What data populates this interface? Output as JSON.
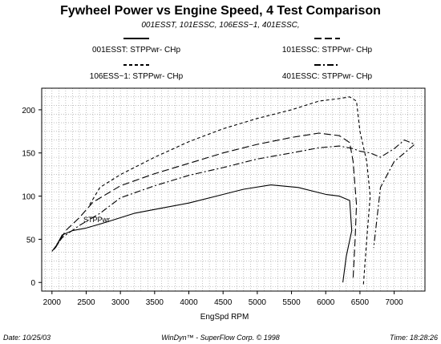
{
  "chart_data": {
    "type": "line",
    "title": "Fywheel Power vs Engine Speed, 4 Test Comparison",
    "subtitle": "001ESST, 101ESSC, 106ESS~1, 401ESSC,",
    "xlabel": "EngSpd  RPM",
    "ylabel": "",
    "xlim": [
      1850,
      7450
    ],
    "ylim": [
      -10,
      225
    ],
    "xticks": [
      2000,
      2500,
      3000,
      3500,
      4000,
      4500,
      5000,
      5500,
      6000,
      6500,
      7000
    ],
    "yticks": [
      0,
      50,
      100,
      150,
      200
    ],
    "grid": true,
    "legend_position": "top",
    "annotation": "STPPwr",
    "series": [
      {
        "name": "001ESST: STPPwr- CHp",
        "dash": "solid",
        "x": [
          2030,
          2150,
          2300,
          2500,
          2800,
          3200,
          3600,
          4000,
          4400,
          4800,
          5200,
          5600,
          6000,
          6200,
          6350,
          6380,
          6300,
          6250
        ],
        "y": [
          38,
          55,
          60,
          63,
          70,
          80,
          86,
          92,
          100,
          108,
          113,
          110,
          102,
          100,
          95,
          60,
          30,
          0
        ]
      },
      {
        "name": "101ESSC: STPPwr- CHp",
        "dash": "longdash",
        "x": [
          2050,
          2200,
          2400,
          2600,
          3000,
          3500,
          4000,
          4500,
          5000,
          5500,
          5900,
          6200,
          6350,
          6400,
          6450,
          6430,
          6400
        ],
        "y": [
          40,
          60,
          75,
          93,
          112,
          126,
          138,
          150,
          160,
          168,
          173,
          170,
          162,
          140,
          90,
          50,
          5
        ]
      },
      {
        "name": "106ESS~1: STPPwr- CHp",
        "dash": "shortdash",
        "x": [
          2550,
          2700,
          3000,
          3500,
          4000,
          4500,
          5000,
          5500,
          5900,
          6200,
          6350,
          6450,
          6500,
          6600,
          6650,
          6600,
          6550
        ],
        "y": [
          90,
          110,
          125,
          145,
          163,
          178,
          190,
          200,
          210,
          213,
          215,
          210,
          175,
          140,
          100,
          50,
          -3
        ]
      },
      {
        "name": "401ESSC: STPPwr- CHp",
        "dash": "dashdot",
        "x": [
          2000,
          2150,
          2400,
          2700,
          3000,
          3500,
          4000,
          4500,
          5000,
          5500,
          5900,
          6200,
          6400,
          6500,
          6650,
          6800,
          7000,
          7150,
          7300,
          7150,
          7000,
          6800,
          6700
        ],
        "y": [
          36,
          52,
          66,
          80,
          98,
          112,
          124,
          133,
          143,
          150,
          156,
          158,
          155,
          152,
          150,
          145,
          155,
          165,
          160,
          150,
          140,
          110,
          40
        ]
      }
    ]
  },
  "footer": {
    "date": "Date: 10/25/03",
    "credit": "WinDyn™ - SuperFlow Corp. © 1998",
    "time": "Time: 18:28:26"
  }
}
